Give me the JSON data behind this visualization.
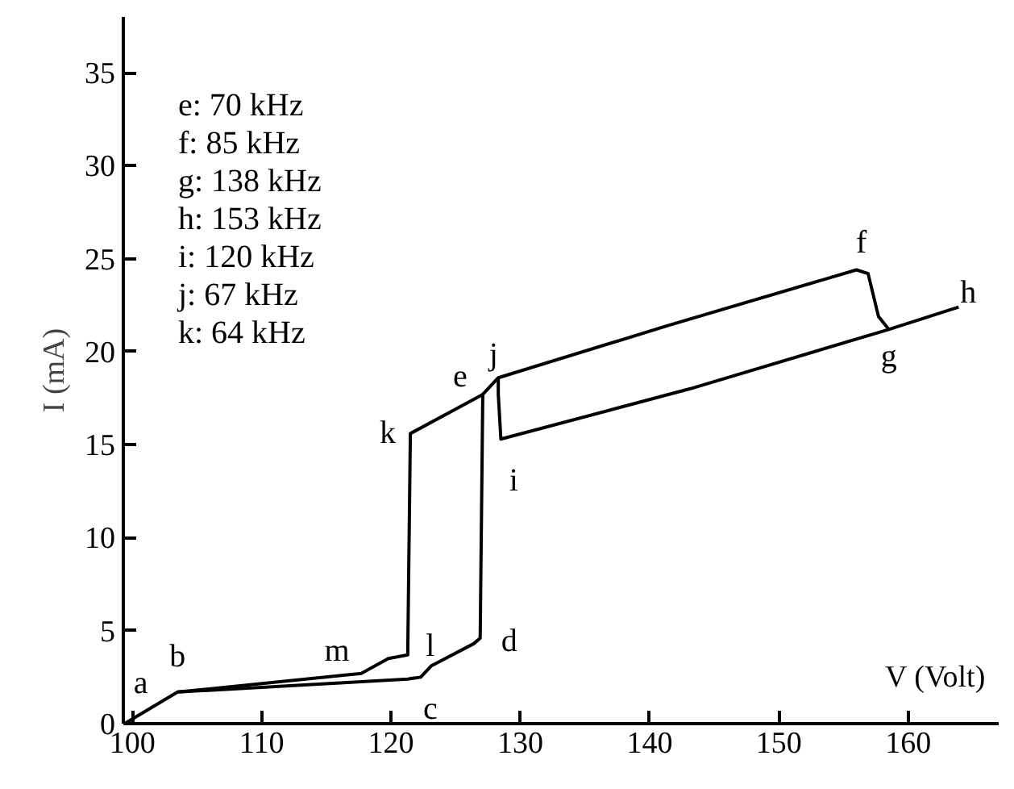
{
  "chart_data": {
    "type": "line",
    "xlabel": "V (Volt)",
    "ylabel": "I (mA)",
    "xlim": [
      99.3,
      167
    ],
    "ylim": [
      0,
      38
    ],
    "xticks": [
      100,
      110,
      120,
      130,
      140,
      150,
      160
    ],
    "yticks": [
      0,
      5,
      10,
      15,
      20,
      25,
      30,
      35
    ],
    "series": [
      {
        "color": "#000000",
        "x": [
          99.4,
          103.5,
          121.3,
          122.3,
          123.1,
          126.4,
          126.9,
          127.1,
          128.3,
          141.4,
          156.0,
          156.9,
          157.7,
          158.5
        ],
        "values": [
          0,
          1.7,
          2.4,
          2.5,
          3.1,
          4.3,
          4.6,
          17.7,
          18.6,
          21.4,
          24.4,
          24.2,
          21.9,
          21.2
        ]
      },
      {
        "color": "#000000",
        "x": [
          163.9,
          158.5,
          143.1,
          128.5,
          128.3,
          128.3
        ],
        "values": [
          22.4,
          21.2,
          18.0,
          15.3,
          17.7,
          18.6
        ]
      },
      {
        "color": "#000000",
        "x": [
          127.1,
          121.5,
          121.3,
          121.3,
          119.8,
          117.7,
          103.5
        ],
        "values": [
          17.7,
          15.6,
          4.0,
          3.7,
          3.5,
          2.7,
          1.7
        ]
      }
    ],
    "annotations": [
      "e: 70 kHz",
      "f: 85 kHz",
      "g: 138 kHz",
      "h: 153 kHz",
      "i: 120 kHz",
      "j: 67 kHz",
      "k: 64 kHz",
      {
        "text": "a",
        "x": 99.4,
        "y": 0
      },
      {
        "text": "b",
        "x": 103.5,
        "y": 1.7
      },
      {
        "text": "m",
        "x": 117.7,
        "y": 2.7
      },
      {
        "text": "l",
        "x": 121.3,
        "y": 4.0
      },
      {
        "text": "c",
        "x": 122.3,
        "y": 2.5
      },
      {
        "text": "d",
        "x": 126.9,
        "y": 4.6
      },
      {
        "text": "e",
        "x": 127.1,
        "y": 17.7
      },
      {
        "text": "k",
        "x": 121.5,
        "y": 15.6
      },
      {
        "text": "i",
        "x": 128.5,
        "y": 15.3
      },
      {
        "text": "j",
        "x": 128.3,
        "y": 18.6
      },
      {
        "text": "f",
        "x": 156.0,
        "y": 24.4
      },
      {
        "text": "g",
        "x": 158.5,
        "y": 21.2
      },
      {
        "text": "h",
        "x": 163.9,
        "y": 22.4
      }
    ]
  }
}
